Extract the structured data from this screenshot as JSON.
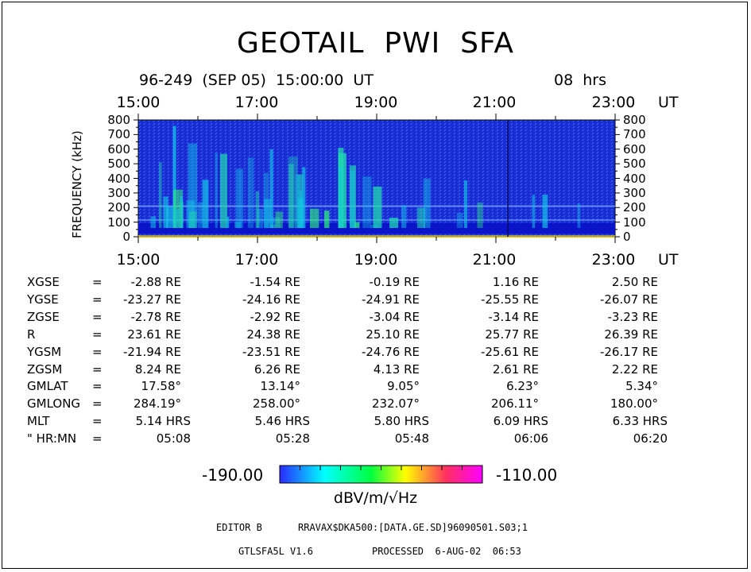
{
  "title": "GEOTAIL  PWI  SFA",
  "header": {
    "date": "96-249  (SEP 05)  15:00:00  UT",
    "duration": "08  hrs"
  },
  "chart_data": {
    "type": "heatmap",
    "title": "GEOTAIL  PWI  SFA",
    "ylabel": "FREQUENCY (kHz)",
    "xlabel": "UT",
    "x_ticks": [
      "15:00",
      "17:00",
      "19:00",
      "21:00",
      "23:00"
    ],
    "y_ticks": [
      "800",
      "700",
      "600",
      "500",
      "400",
      "300",
      "200",
      "100",
      "0"
    ],
    "ylim": [
      0,
      800
    ],
    "colorbar": {
      "min": "-190.00",
      "max": "-110.00",
      "unit": "dBV/m/√Hz",
      "colors": [
        "#2a2aff",
        "#00ffff",
        "#00ff40",
        "#ffff00",
        "#ff3060",
        "#ff00ff"
      ]
    }
  },
  "orbit": {
    "rows": [
      {
        "label": "XGSE",
        "sep": "=",
        "values": [
          "-2.88 RE",
          "-1.54 RE",
          "-0.19 RE",
          "1.16 RE",
          "2.50 RE"
        ]
      },
      {
        "label": "YGSE",
        "sep": "=",
        "values": [
          "-23.27 RE",
          "-24.16 RE",
          "-24.91 RE",
          "-25.55 RE",
          "-26.07 RE"
        ]
      },
      {
        "label": "ZGSE",
        "sep": "=",
        "values": [
          "-2.78 RE",
          "-2.92 RE",
          "-3.04 RE",
          "-3.14 RE",
          "-3.23 RE"
        ]
      },
      {
        "label": "R",
        "sep": "=",
        "values": [
          "23.61 RE",
          "24.38 RE",
          "25.10 RE",
          "25.77 RE",
          "26.39 RE"
        ]
      },
      {
        "label": "YGSM",
        "sep": "=",
        "values": [
          "-21.94 RE",
          "-23.51 RE",
          "-24.76 RE",
          "-25.61 RE",
          "-26.17 RE"
        ]
      },
      {
        "label": "ZGSM",
        "sep": "=",
        "values": [
          "8.24 RE",
          "6.26 RE",
          "4.13 RE",
          "2.61 RE",
          "2.22 RE"
        ]
      },
      {
        "label": "GMLAT",
        "sep": "=",
        "values": [
          "17.58°",
          "13.14°",
          "9.05°",
          "6.23°",
          "5.34°"
        ]
      },
      {
        "label": "GMLONG",
        "sep": "=",
        "values": [
          "284.19°",
          "258.00°",
          "232.07°",
          "206.11°",
          "180.00°"
        ]
      },
      {
        "label": "MLT",
        "sep": "=",
        "values": [
          "5.14 HRS",
          "5.46 HRS",
          "5.80 HRS",
          "6.09 HRS",
          "6.33 HRS"
        ]
      },
      {
        "label": "\" HR:MN",
        "sep": "=",
        "values": [
          "05:08",
          "05:28",
          "05:48",
          "06:06",
          "06:20"
        ]
      }
    ]
  },
  "footer": {
    "editor": "EDITOR B",
    "path": "RRAVAX$DKA500:[DATA.GE.SD]96090501.S03;1",
    "version": "GTLSFA5L V1.6",
    "processed": "PROCESSED  6-AUG-02  06:53"
  }
}
